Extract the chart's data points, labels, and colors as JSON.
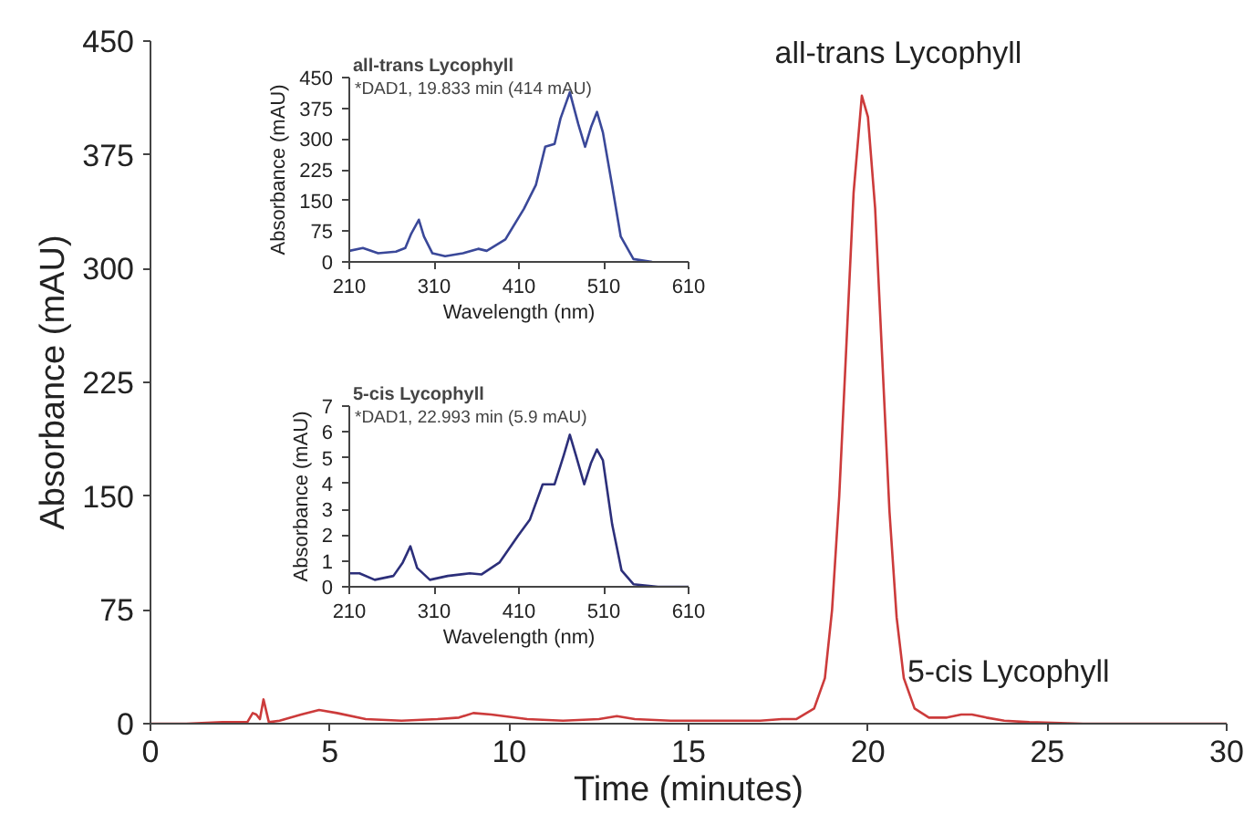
{
  "chart_data": [
    {
      "type": "line",
      "xlabel": "Time (minutes)",
      "ylabel": "Absorbance (mAU)",
      "xlim": [
        0,
        30
      ],
      "ylim": [
        0,
        450
      ],
      "xticks": [
        0,
        5,
        10,
        15,
        20,
        25,
        30
      ],
      "yticks": [
        0,
        75,
        150,
        225,
        300,
        375,
        450
      ],
      "x": [
        0,
        1,
        2,
        2.7,
        2.85,
        2.95,
        3.05,
        3.15,
        3.3,
        3.6,
        4.2,
        4.7,
        5.2,
        6,
        7,
        8,
        8.6,
        9,
        9.5,
        10.5,
        11.5,
        12.5,
        13,
        13.5,
        14.5,
        16,
        17,
        17.6,
        18,
        18.5,
        18.8,
        19,
        19.2,
        19.4,
        19.6,
        19.83,
        20,
        20.2,
        20.4,
        20.6,
        20.8,
        21,
        21.3,
        21.7,
        22.2,
        22.6,
        22.9,
        23.3,
        23.8,
        24.5,
        26,
        28,
        30
      ],
      "series": [
        {
          "color": "#cc3b3b",
          "values": [
            0,
            0,
            1,
            1,
            7,
            6,
            3,
            16,
            1,
            2,
            6,
            9,
            7,
            3,
            2,
            3,
            4,
            7,
            6,
            3,
            2,
            3,
            5,
            3,
            2,
            2,
            2,
            3,
            3,
            10,
            30,
            75,
            150,
            250,
            350,
            414,
            400,
            340,
            240,
            140,
            70,
            30,
            10,
            4,
            4,
            6,
            6,
            4,
            2,
            1,
            0,
            0,
            0
          ]
        }
      ],
      "annotations": [
        {
          "text": "all-trans Lycophyll",
          "x": 19.83,
          "y": 414
        },
        {
          "text": "5-cis Lycophyll",
          "x": 22.9,
          "y": 6
        }
      ]
    },
    {
      "type": "line",
      "title": "all-trans Lycophyll",
      "subtitle": "*DAD1, 19.833 min (414 mAU)",
      "xlabel": "Wavelength (nm)",
      "ylabel": "Absorbance (mAU)",
      "xlim": [
        210,
        610
      ],
      "ylim": [
        0,
        450
      ],
      "xticks": [
        210,
        310,
        410,
        510,
        610
      ],
      "yticks": [
        0,
        75,
        150,
        225,
        300,
        375,
        450
      ],
      "x": [
        210,
        226,
        244,
        265,
        276,
        283,
        292,
        298,
        308,
        323,
        344,
        362,
        372,
        394,
        416,
        430,
        441,
        452,
        459,
        470,
        480,
        488,
        495,
        502,
        509,
        520,
        530,
        545,
        567
      ],
      "series": [
        {
          "color": "#3a4899",
          "values": [
            27,
            34,
            21,
            25,
            34,
            69,
            103,
            62,
            21,
            14,
            21,
            32,
            27,
            55,
            130,
            188,
            281,
            288,
            350,
            414,
            336,
            281,
            329,
            366,
            316,
            185,
            62,
            7,
            0
          ]
        }
      ]
    },
    {
      "type": "line",
      "title": "5-cis Lycophyll",
      "subtitle": "*DAD1, 22.993 min (5.9 mAU)",
      "xlabel": "Wavelength (nm)",
      "ylabel": "Absorbance (mAU)",
      "xlim": [
        210,
        610
      ],
      "ylim": [
        0,
        7
      ],
      "xticks": [
        210,
        310,
        410,
        510,
        610
      ],
      "yticks": [
        0,
        1,
        2,
        3,
        4,
        5,
        6,
        7
      ],
      "x": [
        210,
        222,
        240,
        262,
        273,
        282,
        290,
        305,
        326,
        352,
        366,
        387,
        409,
        423,
        438,
        452,
        463,
        470,
        477,
        487,
        495,
        502,
        509,
        520,
        531,
        545,
        574,
        610
      ],
      "series": [
        {
          "color": "#2c2f7a",
          "values": [
            0.52,
            0.52,
            0.27,
            0.42,
            0.94,
            1.57,
            0.73,
            0.27,
            0.42,
            0.52,
            0.48,
            0.94,
            1.98,
            2.61,
            3.97,
            3.97,
            5.11,
            5.89,
            5.11,
            3.97,
            4.8,
            5.32,
            4.9,
            2.4,
            0.63,
            0.1,
            0,
            0
          ]
        }
      ]
    }
  ]
}
